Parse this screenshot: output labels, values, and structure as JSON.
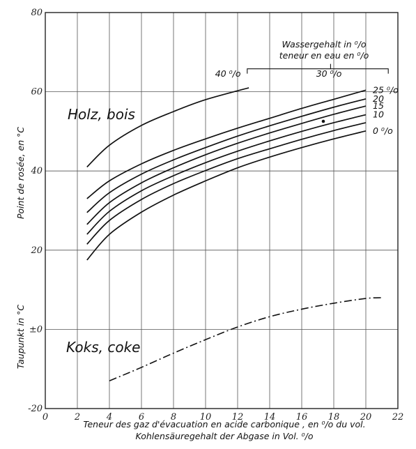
{
  "chart_data": {
    "type": "line",
    "xlabel_fr": "Teneur des gaz d'évacuation en acide carbonique , en ⁰/o du vol.",
    "xlabel_de": "Kohlensäuregehalt der Abgase in Vol. ⁰/o",
    "ylabel_top": "Point de rosée, en °C",
    "ylabel_bottom": "Taupunkt in °C",
    "xlim": [
      0,
      22
    ],
    "ylim": [
      -20,
      80
    ],
    "x_ticks": [
      "0",
      "2",
      "4",
      "6",
      "8",
      "10",
      "12",
      "14",
      "16",
      "18",
      "20",
      "22"
    ],
    "y_ticks": [
      "80",
      "60",
      "40",
      "20",
      "±0",
      "-20"
    ],
    "legend_title_de": "Wassergehalt in ⁰/o",
    "legend_title_fr": "teneur en eau en ⁰/o",
    "groups": [
      {
        "label": "Holz, bois",
        "series": [
          {
            "name": "40 ⁰/o",
            "x": [
              2.6,
              4,
              6,
              8,
              10,
              12.7
            ],
            "y": [
              41,
              46.5,
              51.5,
              55,
              58,
              61
            ]
          },
          {
            "name": "25 ⁰/o",
            "x": [
              2.6,
              4,
              6,
              8,
              10,
              12,
              14,
              16,
              18,
              20
            ],
            "y": [
              33,
              37.5,
              41.8,
              45.2,
              48.1,
              50.8,
              53.3,
              55.8,
              58.1,
              60.4
            ]
          },
          {
            "name": "20",
            "x": [
              2.6,
              4,
              6,
              8,
              10,
              12,
              14,
              16,
              18,
              20
            ],
            "y": [
              29.5,
              34.5,
              39.2,
              42.8,
              45.9,
              48.8,
              51.4,
              53.8,
              56.1,
              58.2
            ]
          },
          {
            "name": "15",
            "x": [
              2.6,
              4,
              6,
              8,
              10,
              12,
              14,
              16,
              18,
              20
            ],
            "y": [
              26.5,
              32,
              37,
              40.8,
              44.1,
              47,
              49.6,
              52,
              54.3,
              56.4
            ]
          },
          {
            "name": "10",
            "x": [
              2.6,
              4,
              6,
              8,
              10,
              12,
              14,
              16,
              18,
              20
            ],
            "y": [
              24,
              29.8,
              35,
              38.8,
              42.1,
              45,
              47.6,
              50,
              52.2,
              54.2
            ]
          },
          {
            "name": "",
            "x": [
              2.6,
              4,
              6,
              8,
              10,
              12,
              14,
              16,
              18,
              20
            ],
            "y": [
              21.5,
              27.5,
              32.8,
              36.8,
              40.1,
              43.1,
              45.6,
              48,
              50.2,
              52.2
            ]
          },
          {
            "name": "0 ⁰/o",
            "x": [
              2.6,
              4,
              6,
              8,
              10,
              12,
              14,
              16,
              18,
              20
            ],
            "y": [
              17.5,
              24,
              29.6,
              33.9,
              37.5,
              40.8,
              43.5,
              45.9,
              48.1,
              50.1
            ]
          }
        ],
        "bracket_labels": [
          {
            "text": "40 ⁰/o",
            "x": 10.6
          },
          {
            "text": "30 ⁰/o",
            "x": 16.9
          }
        ]
      },
      {
        "label": "Koks, coke",
        "series": [
          {
            "name": "",
            "x": [
              4,
              6,
              8,
              10,
              12,
              14,
              16,
              18,
              20,
              21
            ],
            "y": [
              -13,
              -9.6,
              -6,
              -2.6,
              0.6,
              3.2,
              5.1,
              6.6,
              7.8,
              8
            ]
          }
        ]
      }
    ],
    "grid": true
  }
}
